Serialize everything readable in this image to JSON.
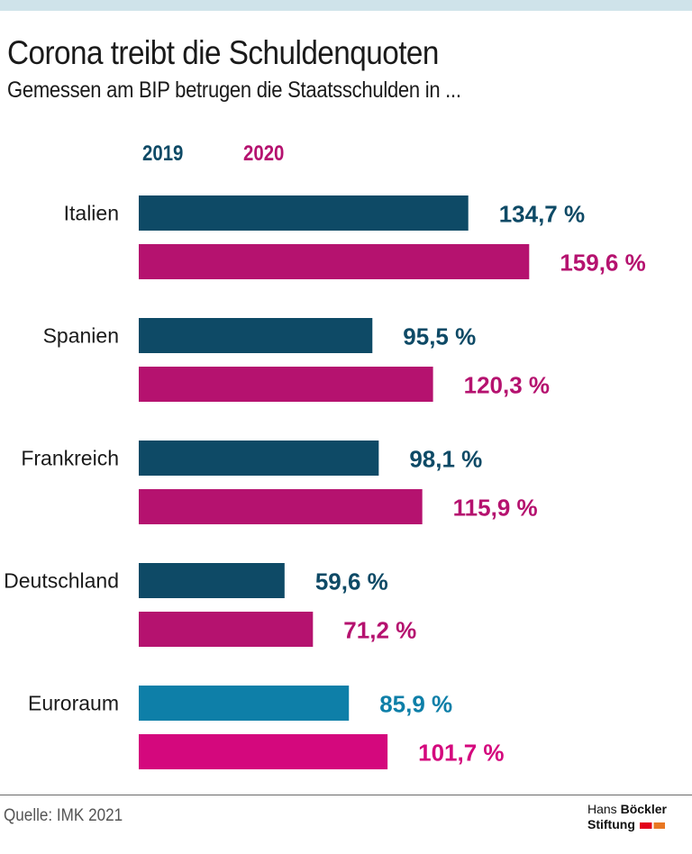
{
  "colors": {
    "dark_blue": "#0e4a66",
    "magenta": "#b5126f",
    "euro_2019": "#0e7fa8",
    "euro_2020": "#d4087d",
    "top_band": "#cfe3ea"
  },
  "chart_data": {
    "type": "bar",
    "orientation": "horizontal",
    "title": "Corona treibt die Schuldenquoten",
    "subtitle": "Gemessen am BIP betrugen die Staatsschulden in ...",
    "categories": [
      "Italien",
      "Spanien",
      "Frankreich",
      "Deutschland",
      "Euroraum"
    ],
    "series": [
      {
        "name": "2019",
        "values": [
          134.7,
          95.5,
          98.1,
          59.6,
          85.9
        ],
        "labels": [
          "134,7 %",
          "95,5 %",
          "98,1 %",
          "59,6 %",
          "85,9 %"
        ]
      },
      {
        "name": "2020",
        "values": [
          159.6,
          120.3,
          115.9,
          71.2,
          101.7
        ],
        "labels": [
          "159,6 %",
          "120,3 %",
          "115,9 %",
          "71,2 %",
          "101,7 %"
        ]
      }
    ],
    "unit": "%",
    "xlim": [
      0,
      160
    ],
    "xlabel": "",
    "ylabel": "",
    "grid": false,
    "legend": "top"
  },
  "source": "Quelle: IMK 2021",
  "logo": {
    "line1_a": "Hans",
    "line1_b": "Böckler",
    "line2": "Stiftung"
  }
}
